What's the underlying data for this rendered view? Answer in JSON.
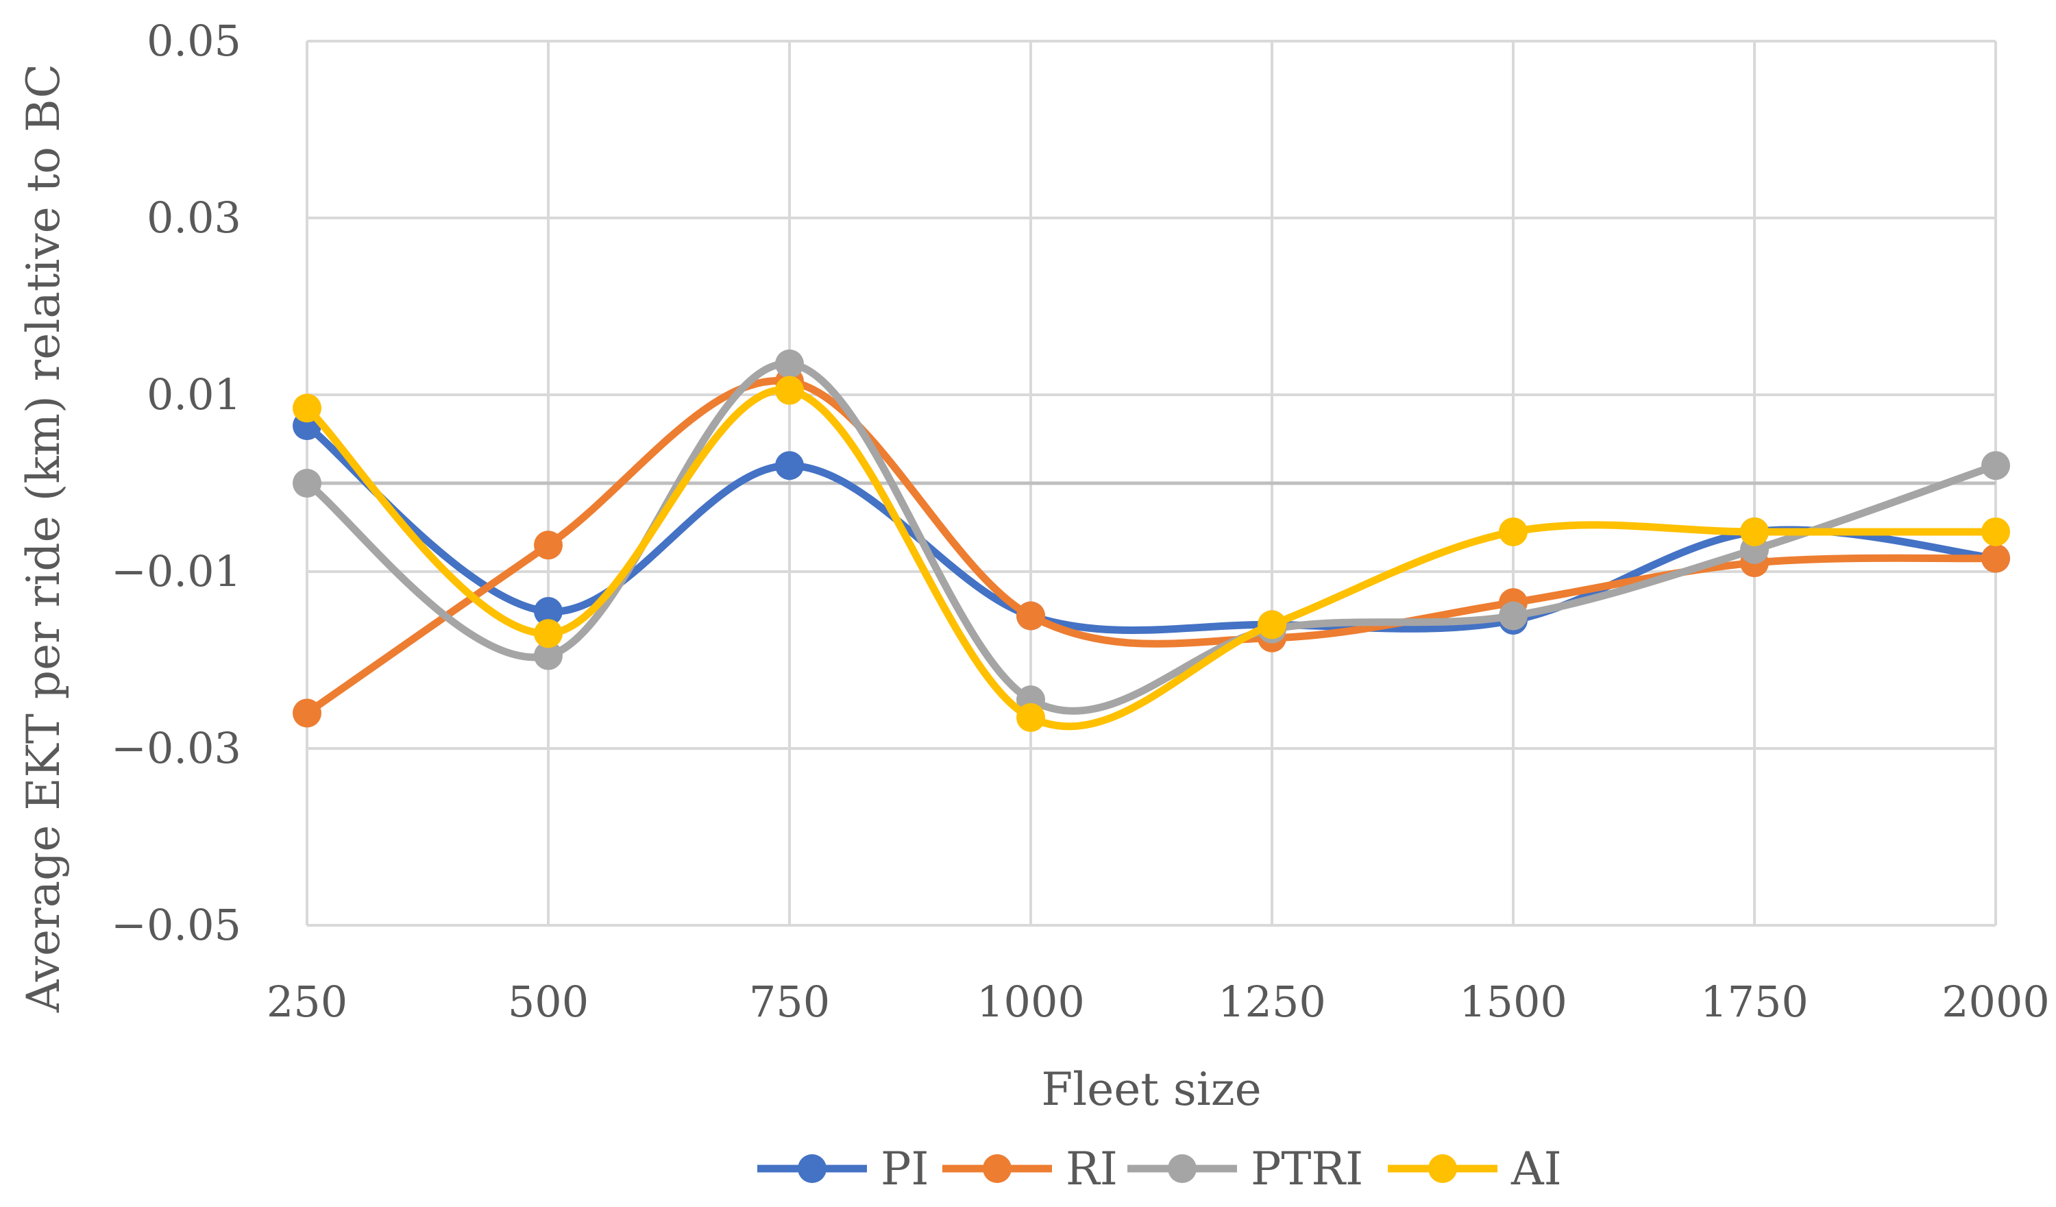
{
  "chart_data": {
    "type": "line",
    "title": "",
    "xlabel": "Fleet size",
    "ylabel": "Average EKT per ride (km) relative to BC",
    "categories": [
      "250",
      "500",
      "750",
      "1000",
      "1250",
      "1500",
      "1750",
      "2000"
    ],
    "y_ticks": [
      "0.05",
      "0.03",
      "0.01",
      "−0.01",
      "−0.03",
      "−0.05"
    ],
    "y_tick_values": [
      0.05,
      0.03,
      0.01,
      -0.01,
      -0.03,
      -0.05
    ],
    "ylim": [
      -0.05,
      0.05
    ],
    "grid": true,
    "smooth": true,
    "legend_position": "bottom",
    "series": [
      {
        "name": "PI",
        "color": "#4472C4",
        "values": [
          0.0065,
          -0.0145,
          0.002,
          -0.015,
          -0.016,
          -0.0155,
          -0.0055,
          -0.0085
        ]
      },
      {
        "name": "RI",
        "color": "#ED7D31",
        "values": [
          -0.026,
          -0.007,
          0.0115,
          -0.015,
          -0.0175,
          -0.0135,
          -0.009,
          -0.0085
        ]
      },
      {
        "name": "PTRI",
        "color": "#A5A5A5",
        "values": [
          0.0,
          -0.0195,
          0.0135,
          -0.0245,
          -0.0165,
          -0.015,
          -0.0075,
          0.002
        ]
      },
      {
        "name": "AI",
        "color": "#FFC000",
        "values": [
          0.0085,
          -0.017,
          0.0105,
          -0.0265,
          -0.016,
          -0.0055,
          -0.0055,
          -0.0055
        ]
      }
    ]
  }
}
